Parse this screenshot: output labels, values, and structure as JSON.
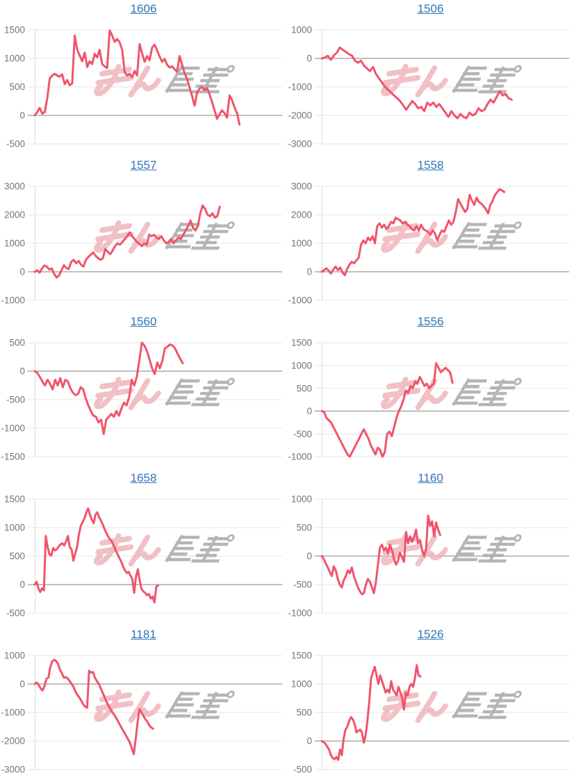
{
  "page": {
    "background": "#ffffff"
  },
  "style": {
    "line_color": "#f0546a",
    "title_color": "#2e74b5",
    "grid_color": "#e4e4e4",
    "zero_line_color": "#999999",
    "axis_line_color": "#d9d9d9",
    "tick_label_color": "#747474",
    "watermark_pink": "#efb6bc",
    "watermark_gray": "#adadad"
  },
  "watermark": {
    "text": "みんレポ",
    "icon": "minrepo-logo-watermark"
  },
  "chart_data": [
    {
      "type": "line",
      "title": "1606",
      "ylim": [
        -500,
        1500
      ],
      "yticks": [
        1500,
        1000,
        500,
        0,
        -500
      ],
      "x_end_frac": 0.83,
      "grid": true,
      "legend": "none",
      "values": [
        0,
        60,
        130,
        30,
        60,
        300,
        650,
        700,
        730,
        700,
        680,
        720,
        550,
        620,
        530,
        560,
        1400,
        1150,
        1050,
        950,
        1100,
        850,
        950,
        900,
        1080,
        1020,
        1150,
        900,
        860,
        830,
        1490,
        1400,
        1290,
        1340,
        1280,
        1150,
        760,
        700,
        730,
        670,
        780,
        700,
        1250,
        1090,
        940,
        1040,
        970,
        1190,
        1240,
        1140,
        1030,
        940,
        990,
        890,
        840,
        860,
        810,
        770,
        1040,
        890,
        740,
        640,
        490,
        340,
        170,
        400,
        470,
        500,
        440,
        480,
        370,
        240,
        90,
        -60,
        20,
        90,
        40,
        -40,
        350,
        270,
        140,
        40,
        -160
      ]
    },
    {
      "type": "line",
      "title": "1506",
      "ylim": [
        -3000,
        1000
      ],
      "yticks": [
        1000,
        0,
        -1000,
        -2000,
        -3000
      ],
      "x_end_frac": 0.77,
      "grid": true,
      "legend": "none",
      "values": [
        0,
        30,
        90,
        -50,
        100,
        200,
        380,
        300,
        230,
        150,
        100,
        -80,
        -150,
        -80,
        -250,
        -350,
        -450,
        -300,
        -550,
        -700,
        -850,
        -1000,
        -1100,
        -1200,
        -1300,
        -1400,
        -1500,
        -1650,
        -1800,
        -1650,
        -1500,
        -1600,
        -1750,
        -1700,
        -1850,
        -1550,
        -1650,
        -1550,
        -1700,
        -1600,
        -1750,
        -1900,
        -2050,
        -1850,
        -2000,
        -2100,
        -1950,
        -2050,
        -2100,
        -1900,
        -2000,
        -1950,
        -1750,
        -1850,
        -1800,
        -1600,
        -1450,
        -1550,
        -1350,
        -1150,
        -1300,
        -1250,
        -1400,
        -1450
      ]
    },
    {
      "type": "line",
      "title": "1557",
      "ylim": [
        -1000,
        3000
      ],
      "yticks": [
        3000,
        2000,
        1000,
        0,
        -1000
      ],
      "x_end_frac": 0.75,
      "grid": true,
      "legend": "none",
      "values": [
        0,
        50,
        -30,
        120,
        220,
        180,
        80,
        120,
        -80,
        -200,
        -130,
        50,
        230,
        130,
        100,
        350,
        420,
        300,
        380,
        250,
        180,
        420,
        520,
        600,
        680,
        560,
        480,
        420,
        480,
        800,
        700,
        620,
        750,
        900,
        1000,
        950,
        1050,
        1150,
        1250,
        1380,
        1250,
        1150,
        1050,
        980,
        900,
        1000,
        950,
        1300,
        1250,
        1300,
        1200,
        1150,
        1250,
        1100,
        1000,
        1050,
        1150,
        1000,
        1100,
        1200,
        1150,
        1300,
        1450,
        1600,
        1800,
        1550,
        1450,
        1600,
        2050,
        2330,
        2200,
        2000,
        1950,
        2050,
        1900,
        1950,
        2290
      ]
    },
    {
      "type": "line",
      "title": "1558",
      "ylim": [
        -1000,
        3000
      ],
      "yticks": [
        3000,
        2000,
        1000,
        0,
        -1000
      ],
      "x_end_frac": 0.74,
      "grid": true,
      "legend": "none",
      "values": [
        0,
        60,
        120,
        40,
        -60,
        80,
        180,
        60,
        150,
        -30,
        -120,
        100,
        250,
        350,
        300,
        400,
        500,
        950,
        1100,
        1000,
        1200,
        1100,
        1250,
        1000,
        1600,
        1700,
        1550,
        1650,
        1500,
        1600,
        1750,
        1700,
        1900,
        1850,
        1800,
        1700,
        1750,
        1650,
        1600,
        1500,
        1450,
        1600,
        1450,
        1650,
        1500,
        1450,
        1400,
        1300,
        1450,
        1350,
        1100,
        1300,
        1450,
        1400,
        1600,
        1800,
        1650,
        1750,
        2100,
        2550,
        2400,
        2250,
        2100,
        2200,
        2700,
        2500,
        2350,
        2600,
        2450,
        2400,
        2300,
        2200,
        2050,
        2350,
        2500,
        2700,
        2800,
        2900,
        2850,
        2800
      ]
    },
    {
      "type": "line",
      "title": "1560",
      "ylim": [
        -1500,
        500
      ],
      "yticks": [
        500,
        0,
        -500,
        -1000,
        -1500
      ],
      "x_end_frac": 0.6,
      "grid": true,
      "legend": "none",
      "values": [
        0,
        -30,
        -100,
        -180,
        -250,
        -150,
        -220,
        -320,
        -150,
        -250,
        -120,
        -280,
        -150,
        -180,
        -300,
        -380,
        -420,
        -400,
        -280,
        -320,
        -480,
        -600,
        -700,
        -780,
        -800,
        -900,
        -850,
        -1100,
        -850,
        -800,
        -750,
        -800,
        -700,
        -780,
        -650,
        -550,
        -600,
        -450,
        -150,
        -250,
        -100,
        200,
        500,
        450,
        350,
        200,
        50,
        -50,
        150,
        50,
        180,
        400,
        430,
        470,
        450,
        400,
        300,
        220,
        140
      ]
    },
    {
      "type": "line",
      "title": "1556",
      "ylim": [
        -1000,
        1500
      ],
      "yticks": [
        1500,
        1000,
        500,
        0,
        -500,
        -1000
      ],
      "x_end_frac": 0.53,
      "grid": true,
      "legend": "none",
      "values": [
        0,
        -20,
        -150,
        -200,
        -250,
        -350,
        -450,
        -550,
        -650,
        -750,
        -850,
        -950,
        -1000,
        -900,
        -800,
        -700,
        -600,
        -500,
        -400,
        -500,
        -600,
        -750,
        -850,
        -950,
        -800,
        -850,
        -1000,
        -900,
        -500,
        -450,
        -550,
        -350,
        -150,
        0,
        100,
        250,
        450,
        400,
        550,
        500,
        650,
        600,
        750,
        650,
        550,
        600,
        500,
        550,
        600,
        1050,
        950,
        850,
        900,
        950,
        900,
        850,
        620
      ]
    },
    {
      "type": "line",
      "title": "1658",
      "ylim": [
        -500,
        1500
      ],
      "yticks": [
        1500,
        1000,
        500,
        0,
        -500
      ],
      "x_end_frac": 0.5,
      "grid": true,
      "legend": "none",
      "values": [
        0,
        50,
        -65,
        -130,
        -65,
        -100,
        855,
        660,
        530,
        510,
        640,
        600,
        620,
        670,
        705,
        725,
        685,
        755,
        855,
        660,
        620,
        420,
        550,
        660,
        880,
        1030,
        1095,
        1160,
        1270,
        1335,
        1225,
        1140,
        1075,
        1225,
        1270,
        1180,
        1120,
        1050,
        965,
        900,
        835,
        790,
        750,
        680,
        595,
        530,
        465,
        400,
        315,
        250,
        205,
        225,
        160,
        95,
        -145,
        140,
        270,
        75,
        -80,
        -120,
        -145,
        -185,
        -165,
        -245,
        -210,
        -315,
        -35,
        -15
      ]
    },
    {
      "type": "line",
      "title": "1160",
      "ylim": [
        -1000,
        1000
      ],
      "yticks": [
        1000,
        500,
        0,
        -500,
        -1000
      ],
      "x_end_frac": 0.48,
      "grid": true,
      "legend": "none",
      "values": [
        0,
        -50,
        -130,
        -200,
        -280,
        -350,
        -180,
        -250,
        -400,
        -500,
        -550,
        -420,
        -350,
        -250,
        -300,
        -200,
        -350,
        -450,
        -550,
        -620,
        -670,
        -650,
        -500,
        -400,
        -450,
        -550,
        -650,
        -450,
        -150,
        150,
        200,
        100,
        150,
        50,
        200,
        100,
        -50,
        -150,
        -80,
        60,
        -20,
        -100,
        425,
        225,
        345,
        250,
        330,
        465,
        225,
        280,
        100,
        0,
        120,
        710,
        530,
        610,
        345,
        590,
        465,
        370
      ]
    },
    {
      "type": "line",
      "title": "1181",
      "ylim": [
        -3000,
        1000
      ],
      "yticks": [
        1000,
        0,
        -1000,
        -2000,
        -3000
      ],
      "x_end_frac": 0.48,
      "grid": true,
      "legend": "none",
      "values": [
        0,
        50,
        -30,
        -150,
        -230,
        -80,
        180,
        220,
        585,
        790,
        850,
        805,
        710,
        500,
        380,
        220,
        245,
        195,
        100,
        0,
        -105,
        -270,
        -390,
        -470,
        -590,
        -715,
        -795,
        -835,
        465,
        400,
        420,
        220,
        100,
        0,
        -150,
        -310,
        -470,
        -630,
        -760,
        -880,
        -1000,
        -1080,
        -1200,
        -1320,
        -1450,
        -1570,
        -1690,
        -1810,
        -1930,
        -2060,
        -2260,
        -2460,
        -1930,
        -1320,
        -880,
        -1000,
        -1120,
        -1240,
        -1320,
        -1450,
        -1530,
        -1570
      ]
    },
    {
      "type": "line",
      "title": "1526",
      "ylim": [
        -500,
        1500
      ],
      "yticks": [
        1500,
        1000,
        500,
        0,
        -500
      ],
      "x_end_frac": 0.4,
      "grid": true,
      "legend": "none",
      "values": [
        0,
        -20,
        -50,
        -100,
        -150,
        -250,
        -300,
        -320,
        -280,
        -330,
        -150,
        -250,
        50,
        200,
        250,
        350,
        420,
        380,
        300,
        150,
        180,
        200,
        150,
        -30,
        100,
        350,
        700,
        1100,
        1200,
        1300,
        1150,
        1000,
        1150,
        1050,
        950,
        850,
        900,
        850,
        1050,
        900,
        850,
        800,
        950,
        850,
        750,
        550,
        850,
        800,
        950,
        1000,
        950,
        1100,
        1330,
        1150,
        1130
      ]
    }
  ]
}
